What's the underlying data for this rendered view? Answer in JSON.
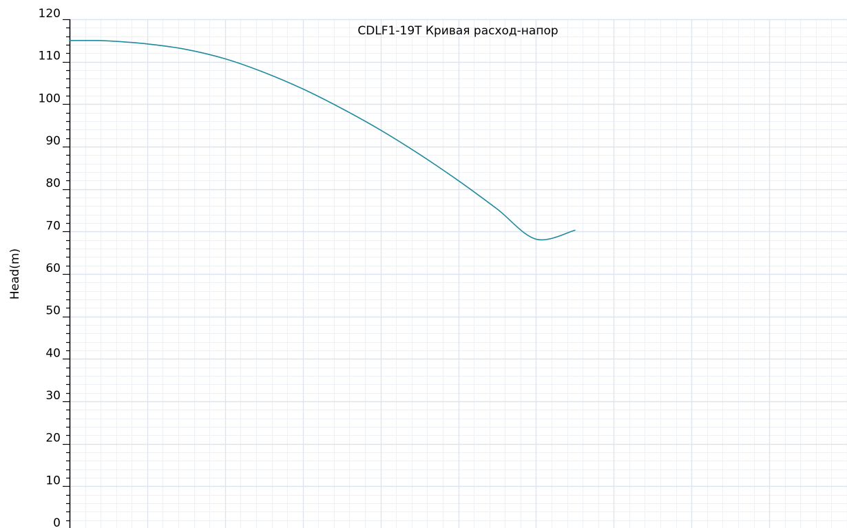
{
  "chart_data": {
    "type": "line",
    "title": "CDLF1-19T Кривая расход-напор",
    "xlabel": "",
    "ylabel": "Head(m)",
    "ylim": [
      0,
      120
    ],
    "yticks": [
      "0",
      "10",
      "20",
      "30",
      "40",
      "50",
      "60",
      "70",
      "80",
      "90",
      "100",
      "110",
      "120"
    ],
    "xlim": [
      0,
      10
    ],
    "grid": true,
    "colors": {
      "series": "#1f8a9e",
      "grid_major": "#dde4ee",
      "grid_minor": "#eef2f7",
      "axis": "#000000"
    },
    "series": [
      {
        "x": [
          0,
          0.25,
          0.5,
          1,
          1.5,
          2,
          2.5,
          3,
          3.5,
          4,
          4.5,
          5,
          5.5,
          6,
          6.5
        ],
        "values": [
          115.0,
          115.0,
          114.9,
          114.2,
          112.9,
          110.7,
          107.5,
          103.6,
          99.0,
          93.9,
          88.2,
          82.0,
          75.3,
          68.2,
          70.3
        ]
      }
    ]
  }
}
